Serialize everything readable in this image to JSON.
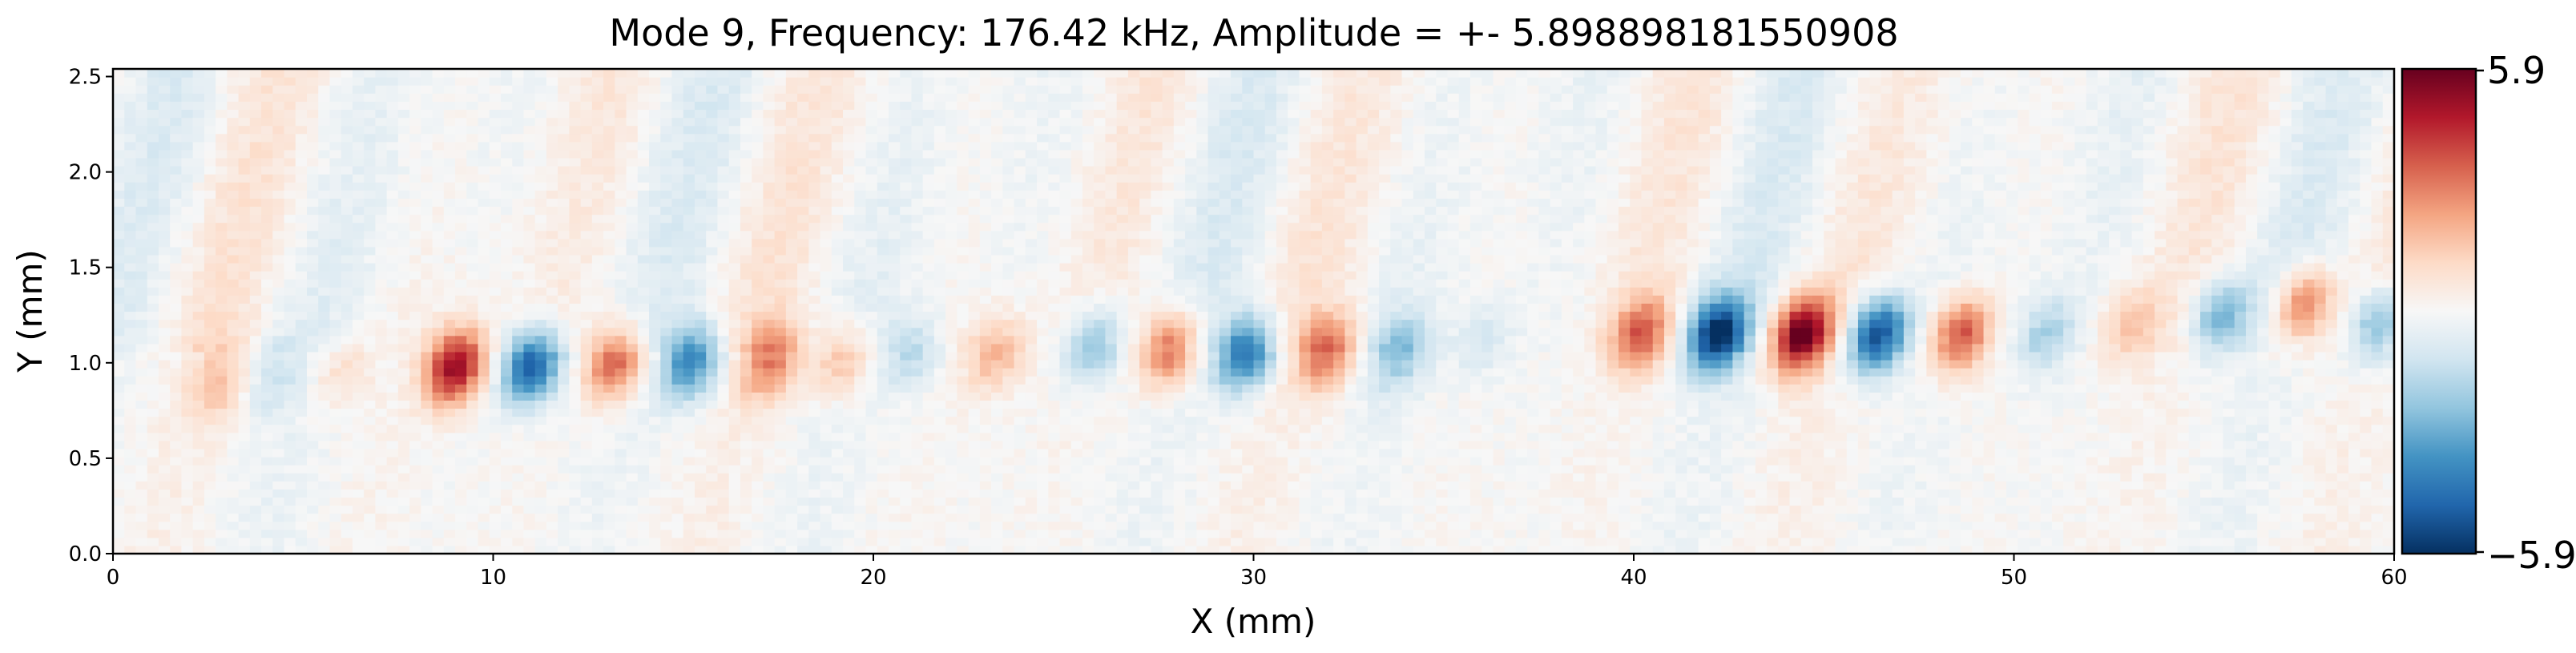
{
  "chart_data": {
    "type": "heatmap",
    "title": "Mode 9, Frequency: 176.42 kHz, Amplitude = +- 5.898898181550908",
    "xlabel": "X (mm)",
    "ylabel": "Y (mm)",
    "xlim": [
      0,
      60
    ],
    "ylim": [
      0,
      2.54
    ],
    "x_ticks": [
      {
        "value": 0,
        "label": "0"
      },
      {
        "value": 10,
        "label": "10"
      },
      {
        "value": 20,
        "label": "20"
      },
      {
        "value": 30,
        "label": "30"
      },
      {
        "value": 40,
        "label": "40"
      },
      {
        "value": 50,
        "label": "50"
      },
      {
        "value": 60,
        "label": "60"
      }
    ],
    "y_ticks": [
      {
        "value": 0.0,
        "label": "0.0"
      },
      {
        "value": 0.5,
        "label": "0.5"
      },
      {
        "value": 1.0,
        "label": "1.0"
      },
      {
        "value": 1.5,
        "label": "1.5"
      },
      {
        "value": 2.0,
        "label": "2.0"
      },
      {
        "value": 2.5,
        "label": "2.5"
      }
    ],
    "colormap": "RdBu_r",
    "colorbar": {
      "min": -5.9,
      "max": 5.9,
      "min_label": "−5.9",
      "max_label": "5.9"
    },
    "grid": false,
    "features": [
      {
        "x": 2.8,
        "y": 0.9,
        "amplitude": 1.6
      },
      {
        "x": 4.2,
        "y": 0.93,
        "amplitude": -1.2
      },
      {
        "x": 6.0,
        "y": 0.95,
        "amplitude": 1.0
      },
      {
        "x": 9.0,
        "y": 0.98,
        "amplitude": 5.2
      },
      {
        "x": 11.0,
        "y": 0.98,
        "amplitude": -5.0
      },
      {
        "x": 13.2,
        "y": 1.0,
        "amplitude": 3.6
      },
      {
        "x": 15.2,
        "y": 1.0,
        "amplitude": -3.8
      },
      {
        "x": 17.3,
        "y": 1.0,
        "amplitude": 2.8
      },
      {
        "x": 19.2,
        "y": 1.02,
        "amplitude": 1.8
      },
      {
        "x": 21.0,
        "y": 1.05,
        "amplitude": -1.6
      },
      {
        "x": 23.2,
        "y": 1.05,
        "amplitude": 2.0
      },
      {
        "x": 25.8,
        "y": 1.1,
        "amplitude": -2.6
      },
      {
        "x": 27.8,
        "y": 1.08,
        "amplitude": 3.6
      },
      {
        "x": 29.8,
        "y": 1.05,
        "amplitude": -4.4
      },
      {
        "x": 31.9,
        "y": 1.05,
        "amplitude": 3.2
      },
      {
        "x": 33.8,
        "y": 1.05,
        "amplitude": -2.2
      },
      {
        "x": 36.0,
        "y": 1.12,
        "amplitude": -1.0
      },
      {
        "x": 40.2,
        "y": 1.15,
        "amplitude": 3.2
      },
      {
        "x": 42.2,
        "y": 1.15,
        "amplitude": -5.5
      },
      {
        "x": 44.4,
        "y": 1.15,
        "amplitude": 5.8
      },
      {
        "x": 46.4,
        "y": 1.15,
        "amplitude": -5.4
      },
      {
        "x": 48.6,
        "y": 1.15,
        "amplitude": 4.0
      },
      {
        "x": 50.8,
        "y": 1.15,
        "amplitude": -1.8
      },
      {
        "x": 53.0,
        "y": 1.2,
        "amplitude": 1.5
      },
      {
        "x": 55.4,
        "y": 1.25,
        "amplitude": -2.8
      },
      {
        "x": 57.6,
        "y": 1.3,
        "amplitude": 3.4
      },
      {
        "x": 59.6,
        "y": 1.2,
        "amplitude": -3.0
      }
    ]
  }
}
